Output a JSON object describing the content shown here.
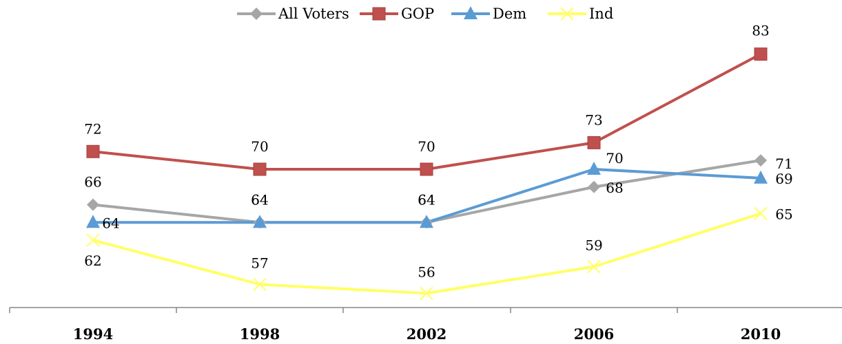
{
  "chart_data": {
    "type": "line",
    "x": [
      "1994",
      "1998",
      "2002",
      "2006",
      "2010"
    ],
    "ylim": [
      54,
      86
    ],
    "grid": false,
    "legend_position": "top",
    "series": [
      {
        "name": "All Voters",
        "values": [
          66,
          64,
          64,
          68,
          71
        ],
        "color": "#a6a6a6",
        "marker": "diamond"
      },
      {
        "name": "GOP",
        "values": [
          72,
          70,
          70,
          73,
          83
        ],
        "color": "#c0504d",
        "marker": "square"
      },
      {
        "name": "Dem",
        "values": [
          64,
          64,
          64,
          70,
          69
        ],
        "color": "#5b9bd5",
        "marker": "triangle"
      },
      {
        "name": "Ind",
        "values": [
          62,
          57,
          56,
          59,
          65
        ],
        "color": "#ffff66",
        "marker": "x"
      }
    ]
  }
}
